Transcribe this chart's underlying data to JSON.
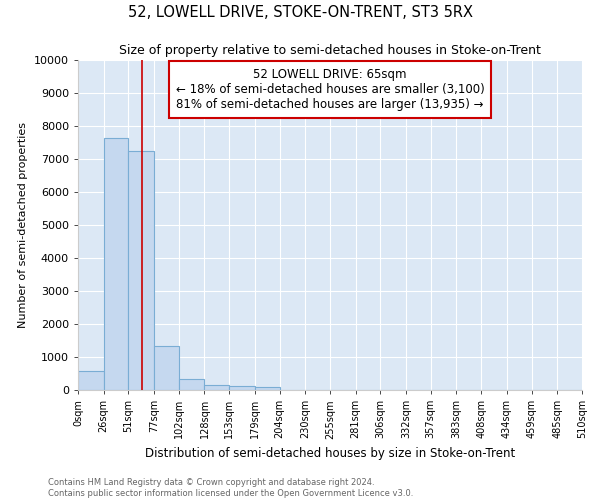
{
  "title": "52, LOWELL DRIVE, STOKE-ON-TRENT, ST3 5RX",
  "subtitle": "Size of property relative to semi-detached houses in Stoke-on-Trent",
  "xlabel": "Distribution of semi-detached houses by size in Stoke-on-Trent",
  "ylabel": "Number of semi-detached properties",
  "footnote1": "Contains HM Land Registry data © Crown copyright and database right 2024.",
  "footnote2": "Contains public sector information licensed under the Open Government Licence v3.0.",
  "bar_edges": [
    0,
    26,
    51,
    77,
    102,
    128,
    153,
    179,
    204,
    230,
    255,
    281,
    306,
    332,
    357,
    383,
    408,
    434,
    459,
    485,
    510
  ],
  "bar_heights": [
    570,
    7650,
    7250,
    1340,
    340,
    140,
    120,
    100,
    0,
    0,
    0,
    0,
    0,
    0,
    0,
    0,
    0,
    0,
    0,
    0
  ],
  "bar_color": "#c5d8ef",
  "bar_edgecolor": "#7aadd4",
  "vline_x": 65,
  "vline_color": "#cc0000",
  "annotation_title": "52 LOWELL DRIVE: 65sqm",
  "annotation_line1": "← 18% of semi-detached houses are smaller (3,100)",
  "annotation_line2": "81% of semi-detached houses are larger (13,935) →",
  "annotation_box_facecolor": "#ffffff",
  "annotation_box_edgecolor": "#cc0000",
  "ylim": [
    0,
    10000
  ],
  "xlim": [
    0,
    510
  ],
  "background_color": "#dce8f5",
  "grid_color": "#ffffff",
  "tick_labels": [
    "0sqm",
    "26sqm",
    "51sqm",
    "77sqm",
    "102sqm",
    "128sqm",
    "153sqm",
    "179sqm",
    "204sqm",
    "230sqm",
    "255sqm",
    "281sqm",
    "306sqm",
    "332sqm",
    "357sqm",
    "383sqm",
    "408sqm",
    "434sqm",
    "459sqm",
    "485sqm",
    "510sqm"
  ]
}
